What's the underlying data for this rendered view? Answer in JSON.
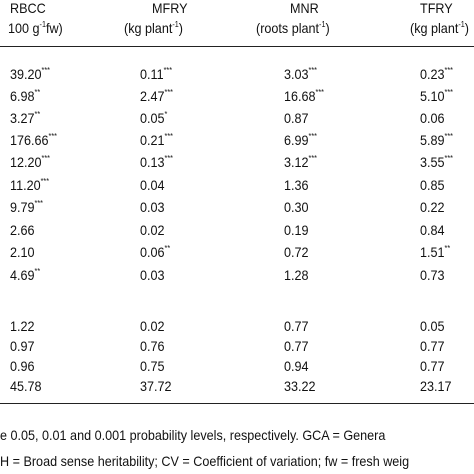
{
  "header": [
    {
      "name": "RBCC",
      "unit": [
        "100 g",
        "-1",
        "fw)"
      ]
    },
    {
      "name": "MFRY",
      "unit": [
        "(kg plant",
        "-1",
        ")"
      ]
    },
    {
      "name": "MNR",
      "unit": [
        "(roots plant",
        "-1",
        ")"
      ]
    },
    {
      "name": "TFRY",
      "unit": [
        "(kg plant",
        "-1",
        ")"
      ]
    }
  ],
  "table": {
    "rows": [
      [
        {
          "v": "39.20",
          "s": "***"
        },
        {
          "v": "0.11",
          "s": "***"
        },
        {
          "v": "3.03",
          "s": "***"
        },
        {
          "v": "0.23",
          "s": "***"
        }
      ],
      [
        {
          "v": "6.98",
          "s": "**"
        },
        {
          "v": "2.47",
          "s": "***"
        },
        {
          "v": "16.68",
          "s": "***"
        },
        {
          "v": "5.10",
          "s": "***"
        }
      ],
      [
        {
          "v": "3.27",
          "s": "**"
        },
        {
          "v": "0.05",
          "s": "*"
        },
        {
          "v": "0.87"
        },
        {
          "v": "0.06"
        }
      ],
      [
        {
          "v": "176.66",
          "s": "***"
        },
        {
          "v": "0.21",
          "s": "***"
        },
        {
          "v": "6.99",
          "s": "***"
        },
        {
          "v": "5.89",
          "s": "***"
        }
      ],
      [
        {
          "v": "12.20",
          "s": "***"
        },
        {
          "v": "0.13",
          "s": "***"
        },
        {
          "v": "3.12",
          "s": "***"
        },
        {
          "v": "3.55",
          "s": "***"
        }
      ],
      [
        {
          "v": "11.20",
          "s": "***"
        },
        {
          "v": "0.04"
        },
        {
          "v": "1.36"
        },
        {
          "v": "0.85"
        }
      ],
      [
        {
          "v": "9.79",
          "s": "***"
        },
        {
          "v": "0.03"
        },
        {
          "v": "0.30"
        },
        {
          "v": "0.22"
        }
      ],
      [
        {
          "v": "2.66"
        },
        {
          "v": "0.02"
        },
        {
          "v": "0.19"
        },
        {
          "v": "0.84"
        }
      ],
      [
        {
          "v": "2.10"
        },
        {
          "v": "0.06",
          "s": "**"
        },
        {
          "v": "0.72"
        },
        {
          "v": "1.51",
          "s": "**"
        }
      ],
      [
        {
          "v": "4.69",
          "s": "**"
        },
        {
          "v": "0.03"
        },
        {
          "v": "1.28"
        },
        {
          "v": "0.73"
        }
      ],
      [
        {
          "v": "1.22"
        },
        {
          "v": "0.02"
        },
        {
          "v": "0.77"
        },
        {
          "v": "0.05"
        }
      ],
      [
        {
          "v": "0.97"
        },
        {
          "v": "0.76"
        },
        {
          "v": "0.77"
        },
        {
          "v": "0.77"
        }
      ],
      [
        {
          "v": "0.96"
        },
        {
          "v": "0.75"
        },
        {
          "v": "0.94"
        },
        {
          "v": "0.77"
        }
      ],
      [
        {
          "v": "45.78"
        },
        {
          "v": "37.72"
        },
        {
          "v": "33.22"
        },
        {
          "v": "23.17"
        }
      ]
    ]
  },
  "footnotes": [
    "e 0.05, 0.01 and 0.001 probability levels, respectively.  GCA = Genera",
    "H = Broad sense heritability; CV = Coefficient of variation; fw = fresh weig"
  ]
}
